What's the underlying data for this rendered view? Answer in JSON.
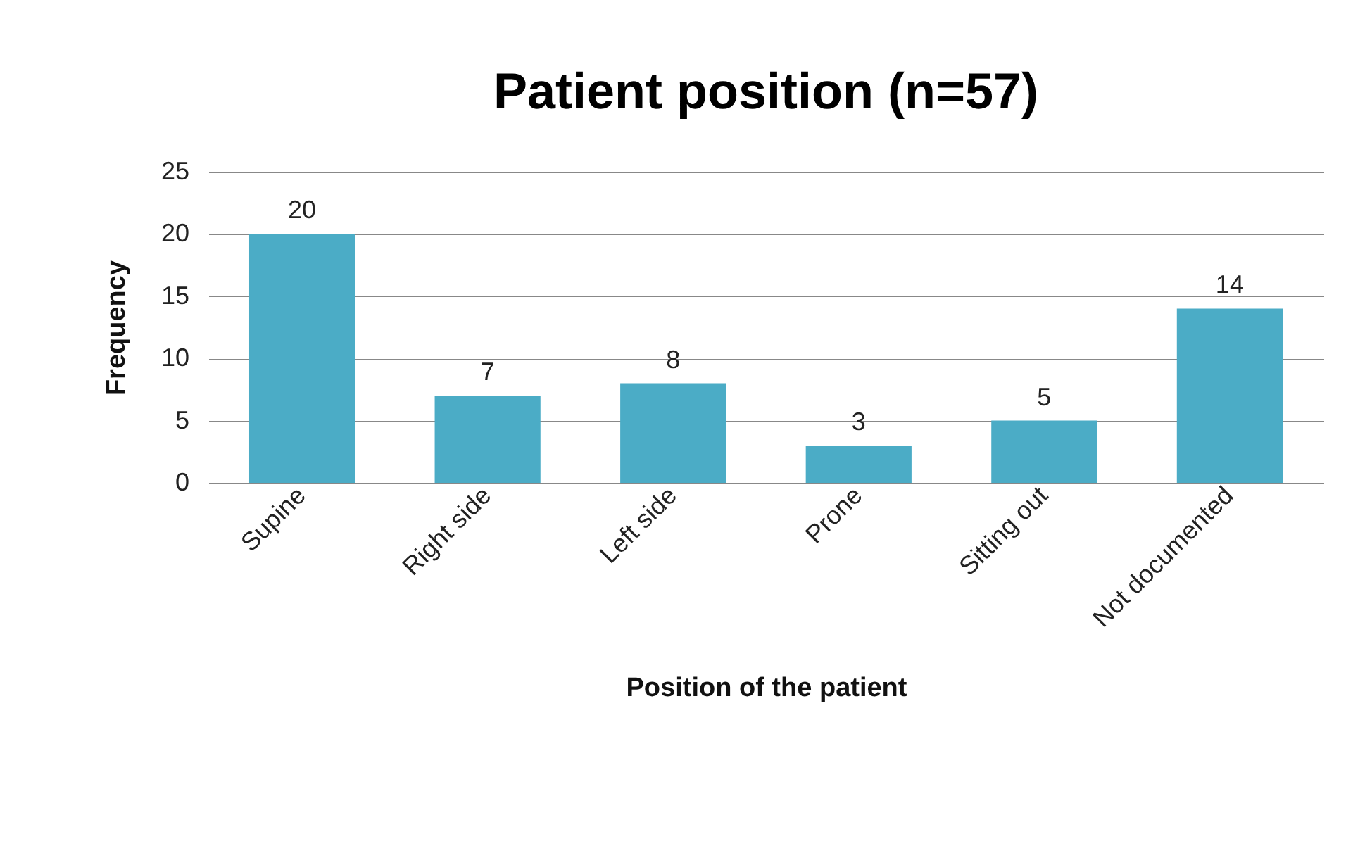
{
  "chart_data": {
    "type": "bar",
    "title": "Patient position (n=57)",
    "xlabel": "Position of the patient",
    "ylabel": "Frequency",
    "categories": [
      "Supine",
      "Right side",
      "Left side",
      "Prone",
      "Sitting out",
      "Not documented"
    ],
    "values": [
      20,
      7,
      8,
      3,
      5,
      14
    ],
    "color": "#4bacc6",
    "ylim": [
      0,
      25
    ],
    "yticks": [
      0,
      5,
      10,
      15,
      20,
      25
    ],
    "grid": "y",
    "data_labels": true
  }
}
